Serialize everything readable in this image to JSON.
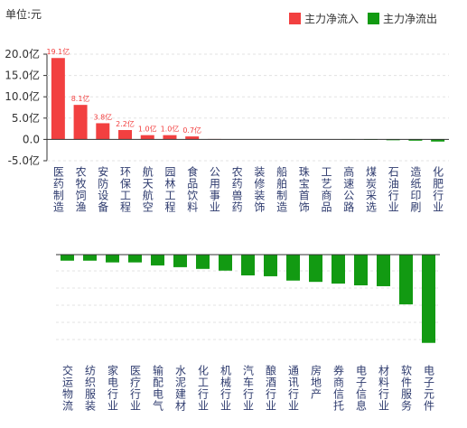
{
  "unit": "单位:元",
  "chart_data": [
    {
      "type": "bar",
      "legend": [
        {
          "name": "主力净流入",
          "color": "#f24040"
        },
        {
          "name": "主力净流出",
          "color": "#129a12"
        }
      ],
      "categories": [
        "医药制造",
        "农牧饲渔",
        "安防设备",
        "环保工程",
        "航天航空",
        "园林工程",
        "食品饮料",
        "公用事业",
        "农药兽药",
        "装修装饰",
        "船舶制造",
        "珠宝首饰",
        "工艺商品",
        "高速公路",
        "煤炭采选",
        "石油行业",
        "造纸印刷",
        "化肥行业"
      ],
      "values": [
        19.1,
        8.1,
        3.8,
        2.2,
        1.0,
        1.0,
        0.7,
        0.1,
        0.05,
        0.03,
        0.02,
        0.01,
        -0.01,
        -0.05,
        -0.1,
        -0.2,
        -0.3,
        -0.5
      ],
      "value_labels": [
        "19.1亿",
        "8.1亿",
        "3.8亿",
        "2.2亿",
        "1.0亿",
        "1.0亿",
        "0.7亿",
        null,
        null,
        null,
        null,
        null,
        null,
        null,
        null,
        null,
        null,
        null
      ],
      "ylim": [
        -5,
        20
      ],
      "yticks": [
        {
          "value": 20,
          "label": "20.0亿"
        },
        {
          "value": 15,
          "label": "15.0亿"
        },
        {
          "value": 10,
          "label": "10.0亿"
        },
        {
          "value": 5,
          "label": "5.0亿"
        },
        {
          "value": 0,
          "label": "0.0"
        },
        {
          "value": -5,
          "label": "-5.0亿"
        }
      ],
      "grid": true
    },
    {
      "type": "bar",
      "categories": [
        "交运物流",
        "纺织服装",
        "家电行业",
        "医疗行业",
        "输配电气",
        "水泥建材",
        "化工行业",
        "机械行业",
        "汽车行业",
        "酿酒行业",
        "通讯行业",
        "房地产",
        "券商信托",
        "电子信息",
        "材料行业",
        "软件服务",
        "电子元件"
      ],
      "values": [
        -1.4,
        -1.4,
        -1.8,
        -1.8,
        -2.5,
        -2.9,
        -3.3,
        -3.7,
        -4.8,
        -5.0,
        -6.0,
        -6.3,
        -6.7,
        -7.1,
        -7.3,
        -11.5,
        -20.4
      ],
      "ylim": [
        -21.5,
        0
      ]
    }
  ]
}
